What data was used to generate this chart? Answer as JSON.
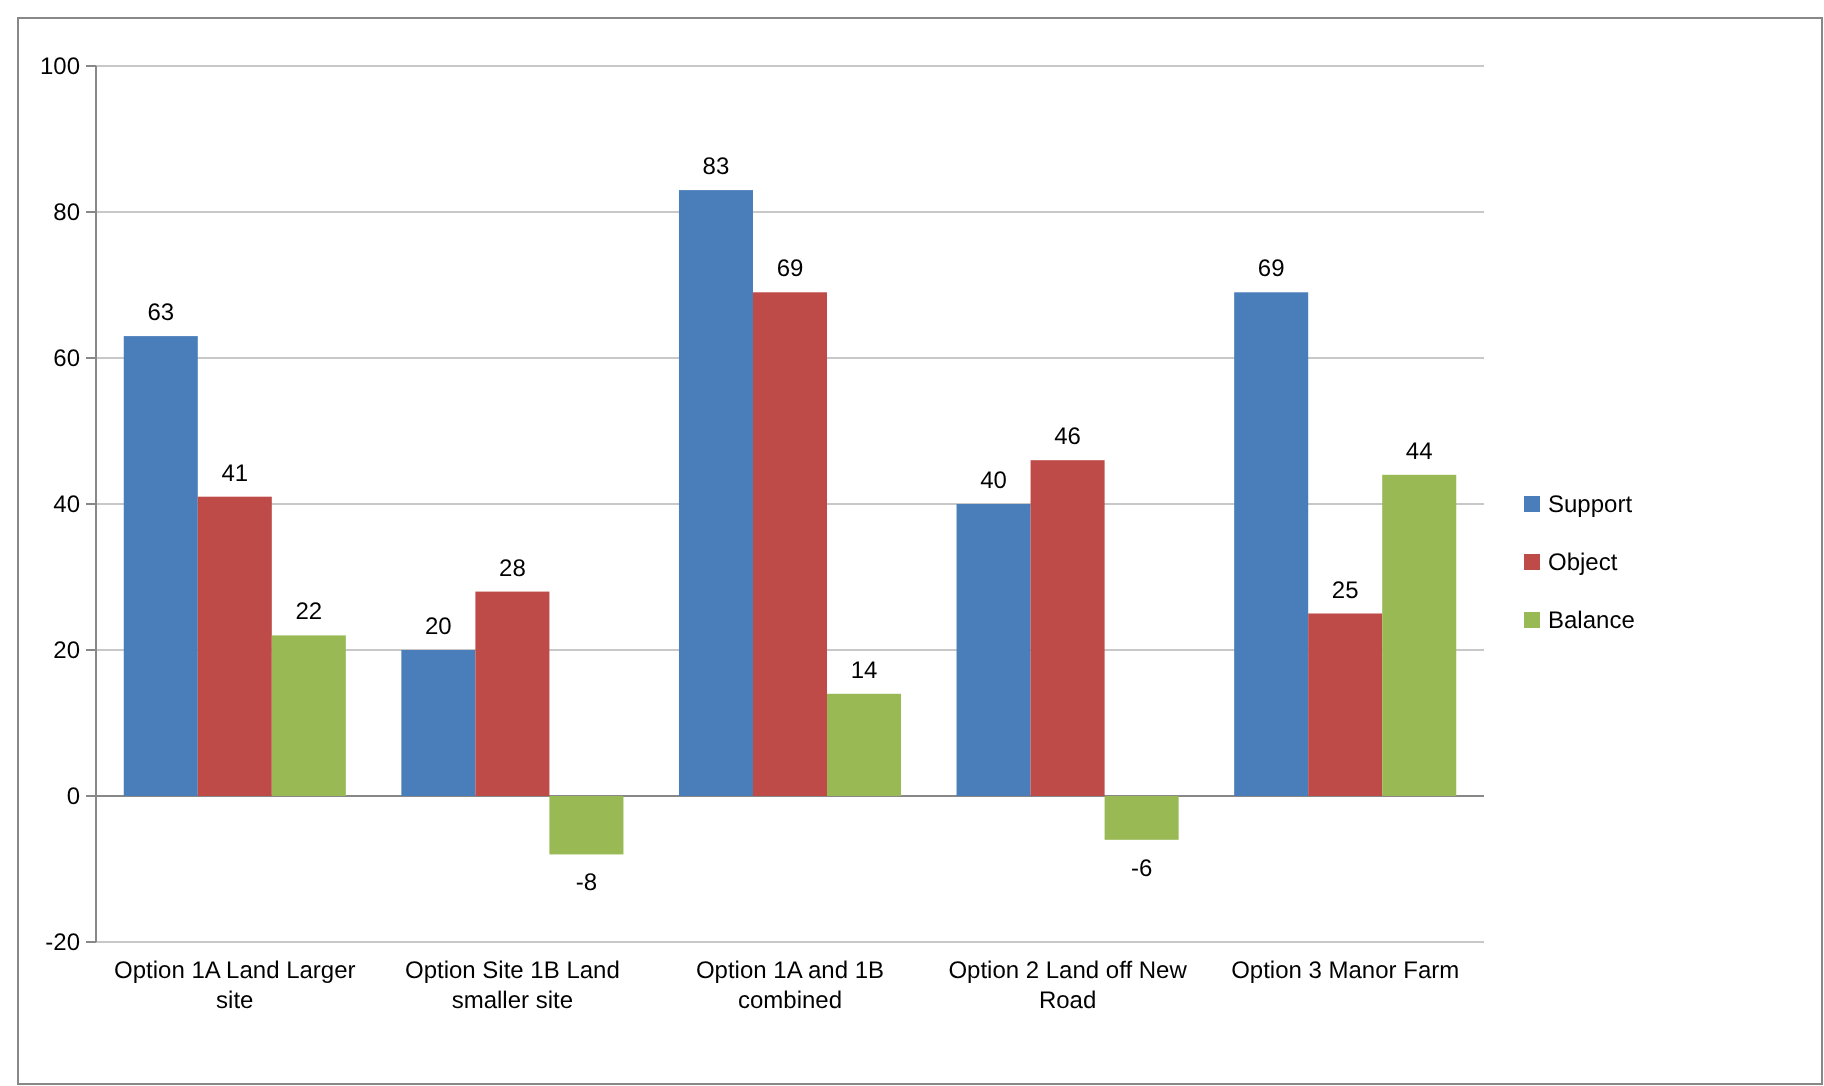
{
  "chart_data": {
    "type": "bar",
    "categories": [
      "Option 1A  Land Larger site",
      "Option Site 1B  Land smaller site",
      "Option 1A and 1B combined",
      "Option 2 Land off New Road",
      "Option 3 Manor Farm"
    ],
    "series": [
      {
        "name": "Support",
        "color": "#4a7ebb",
        "values": [
          63,
          20,
          83,
          40,
          69
        ]
      },
      {
        "name": "Object",
        "color": "#be4b48",
        "values": [
          41,
          28,
          69,
          46,
          25
        ]
      },
      {
        "name": "Balance",
        "color": "#98b954",
        "values": [
          22,
          -8,
          14,
          -6,
          44
        ]
      }
    ],
    "ylim": [
      -20,
      100
    ],
    "yticks": [
      -20,
      0,
      20,
      40,
      60,
      80,
      100
    ],
    "grid": "y",
    "legend": "right",
    "data_labels": true
  }
}
